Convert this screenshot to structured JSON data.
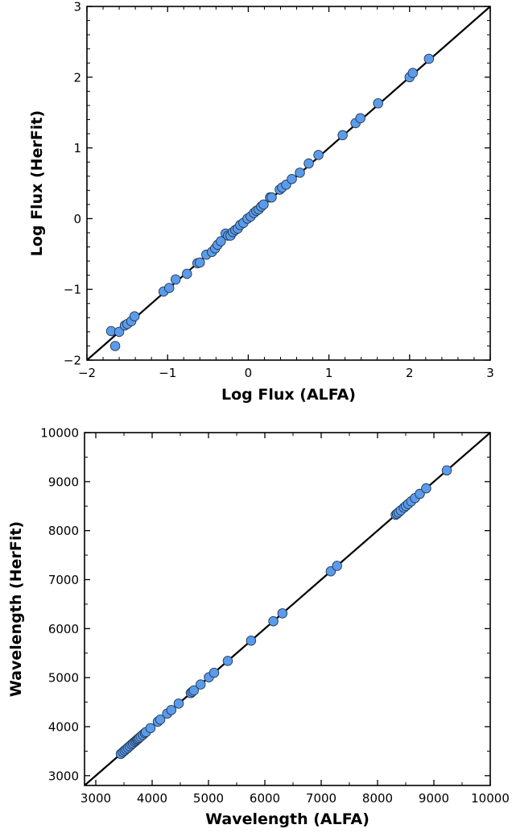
{
  "colors": {
    "marker_fill": "#5b9bea",
    "marker_edge": "#1f3550",
    "line": "#000000",
    "frame": "#000000"
  },
  "chart_data": [
    {
      "type": "scatter",
      "xlabel": "Log Flux (ALFA)",
      "ylabel": "Log Flux (HerFit)",
      "xlim": [
        -2,
        3
      ],
      "ylim": [
        -2,
        3
      ],
      "xticks": [
        -2,
        -1,
        0,
        1,
        2,
        3
      ],
      "yticks": [
        -2,
        -1,
        0,
        1,
        2,
        3
      ],
      "xtick_labels": [
        "−2",
        "−1",
        "0",
        "1",
        "2",
        "3"
      ],
      "ytick_labels": [
        "−2",
        "−1",
        "0",
        "1",
        "2",
        "3"
      ],
      "reference_line": "y = x",
      "grid": false,
      "points": [
        [
          -1.7,
          -1.59
        ],
        [
          -1.65,
          -1.8
        ],
        [
          -1.6,
          -1.6
        ],
        [
          -1.53,
          -1.51
        ],
        [
          -1.5,
          -1.49
        ],
        [
          -1.45,
          -1.45
        ],
        [
          -1.41,
          -1.38
        ],
        [
          -1.05,
          -1.03
        ],
        [
          -0.98,
          -0.98
        ],
        [
          -0.9,
          -0.86
        ],
        [
          -0.76,
          -0.78
        ],
        [
          -0.63,
          -0.63
        ],
        [
          -0.6,
          -0.62
        ],
        [
          -0.52,
          -0.51
        ],
        [
          -0.45,
          -0.47
        ],
        [
          -0.41,
          -0.42
        ],
        [
          -0.38,
          -0.37
        ],
        [
          -0.34,
          -0.32
        ],
        [
          -0.28,
          -0.21
        ],
        [
          -0.25,
          -0.24
        ],
        [
          -0.22,
          -0.24
        ],
        [
          -0.19,
          -0.19
        ],
        [
          -0.16,
          -0.16
        ],
        [
          -0.13,
          -0.14
        ],
        [
          -0.1,
          -0.09
        ],
        [
          -0.06,
          -0.06
        ],
        [
          -0.01,
          0.0
        ],
        [
          0.03,
          0.03
        ],
        [
          0.07,
          0.08
        ],
        [
          0.1,
          0.11
        ],
        [
          0.13,
          0.13
        ],
        [
          0.16,
          0.17
        ],
        [
          0.19,
          0.2
        ],
        [
          0.27,
          0.3
        ],
        [
          0.29,
          0.3
        ],
        [
          0.39,
          0.41
        ],
        [
          0.42,
          0.44
        ],
        [
          0.47,
          0.48
        ],
        [
          0.54,
          0.56
        ],
        [
          0.64,
          0.65
        ],
        [
          0.75,
          0.78
        ],
        [
          0.87,
          0.9
        ],
        [
          1.17,
          1.18
        ],
        [
          1.33,
          1.35
        ],
        [
          1.39,
          1.42
        ],
        [
          1.61,
          1.63
        ],
        [
          2.0,
          2.0
        ],
        [
          2.04,
          2.06
        ],
        [
          2.24,
          2.26
        ]
      ]
    },
    {
      "type": "scatter",
      "xlabel": "Wavelength (ALFA)",
      "ylabel": "Wavelength (HerFit)",
      "xlim": [
        2800,
        10000
      ],
      "ylim": [
        2800,
        10000
      ],
      "xticks": [
        3000,
        4000,
        5000,
        6000,
        7000,
        8000,
        9000,
        10000
      ],
      "yticks": [
        3000,
        4000,
        5000,
        6000,
        7000,
        8000,
        9000,
        10000
      ],
      "xtick_labels": [
        "3000",
        "4000",
        "5000",
        "6000",
        "7000",
        "8000",
        "9000",
        "10000"
      ],
      "ytick_labels": [
        "3000",
        "4000",
        "5000",
        "6000",
        "7000",
        "8000",
        "9000",
        "10000"
      ],
      "reference_line": "y = x",
      "grid": false,
      "points": [
        [
          3444,
          3444
        ],
        [
          3480,
          3480
        ],
        [
          3512,
          3512
        ],
        [
          3540,
          3540
        ],
        [
          3570,
          3570
        ],
        [
          3602,
          3602
        ],
        [
          3634,
          3634
        ],
        [
          3660,
          3660
        ],
        [
          3690,
          3690
        ],
        [
          3712,
          3712
        ],
        [
          3734,
          3734
        ],
        [
          3750,
          3750
        ],
        [
          3771,
          3771
        ],
        [
          3798,
          3798
        ],
        [
          3835,
          3835
        ],
        [
          3869,
          3869
        ],
        [
          3889,
          3889
        ],
        [
          3970,
          3970
        ],
        [
          4101,
          4101
        ],
        [
          4144,
          4144
        ],
        [
          4267,
          4267
        ],
        [
          4340,
          4340
        ],
        [
          4471,
          4471
        ],
        [
          4686,
          4686
        ],
        [
          4713,
          4713
        ],
        [
          4740,
          4740
        ],
        [
          4861,
          4861
        ],
        [
          5007,
          5007
        ],
        [
          5100,
          5100
        ],
        [
          5342,
          5342
        ],
        [
          5755,
          5755
        ],
        [
          6151,
          6151
        ],
        [
          6312,
          6312
        ],
        [
          7170,
          7170
        ],
        [
          7281,
          7281
        ],
        [
          8323,
          8323
        ],
        [
          8345,
          8345
        ],
        [
          8374,
          8374
        ],
        [
          8413,
          8413
        ],
        [
          8467,
          8467
        ],
        [
          8502,
          8502
        ],
        [
          8545,
          8545
        ],
        [
          8598,
          8598
        ],
        [
          8665,
          8665
        ],
        [
          8750,
          8750
        ],
        [
          8863,
          8863
        ],
        [
          9229,
          9229
        ]
      ]
    }
  ]
}
